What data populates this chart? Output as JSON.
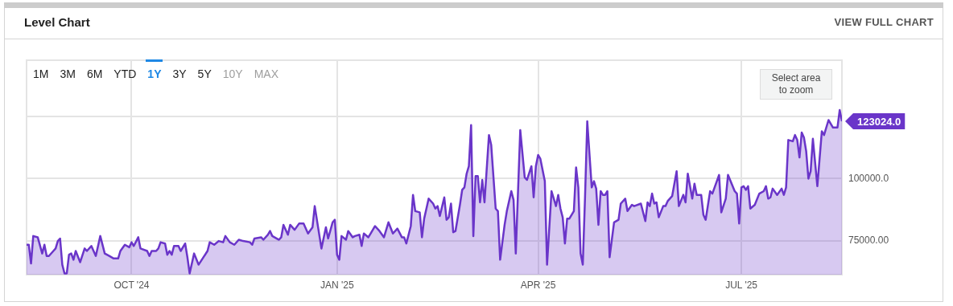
{
  "chart_data": {
    "type": "area",
    "title": "Level Chart",
    "xlim": [
      "2024-08-15",
      "2025-08-15"
    ],
    "ylim": [
      61500,
      147500
    ],
    "xticks": [
      {
        "value": "2024-10-01",
        "label": "OCT '24"
      },
      {
        "value": "2025-01-01",
        "label": "JAN '25"
      },
      {
        "value": "2025-04-01",
        "label": "APR '25"
      },
      {
        "value": "2025-07-01",
        "label": "JUL '25"
      }
    ],
    "yticks": [
      {
        "value": 75000,
        "label": "75000.00"
      },
      {
        "value": 100000,
        "label": "100000.0"
      },
      {
        "value": 125000,
        "label": null
      }
    ],
    "grid": true,
    "marker": "none",
    "line_style": "solid",
    "annotations": [
      {
        "text": "123024.0",
        "x": "2025-08-15",
        "y": 123024
      },
      "VIEW FULL CHART",
      "1M",
      "3M",
      "6M",
      "YTD",
      "1Y",
      "3Y",
      "5Y",
      "10Y",
      "MAX",
      "Select area to zoom"
    ],
    "series": [
      {
        "color": "#6a35c9",
        "x": [
          "2024-08-15",
          "2024-08-16",
          "2024-08-17",
          "2024-08-18",
          "2024-08-20",
          "2024-08-22",
          "2024-08-23",
          "2024-08-24",
          "2024-08-25",
          "2024-08-27",
          "2024-08-28",
          "2024-08-29",
          "2024-08-30",
          "2024-08-31",
          "2024-09-01",
          "2024-09-02",
          "2024-09-03",
          "2024-09-04",
          "2024-09-05",
          "2024-09-06",
          "2024-09-08",
          "2024-09-10",
          "2024-09-11",
          "2024-09-13",
          "2024-09-15",
          "2024-09-17",
          "2024-09-19",
          "2024-09-21",
          "2024-09-23",
          "2024-09-25",
          "2024-09-26",
          "2024-09-28",
          "2024-09-30",
          "2024-10-01",
          "2024-10-02",
          "2024-10-04",
          "2024-10-05",
          "2024-10-08",
          "2024-10-09",
          "2024-10-10",
          "2024-10-12",
          "2024-10-13",
          "2024-10-14",
          "2024-10-16",
          "2024-10-17",
          "2024-10-18",
          "2024-10-19",
          "2024-10-20",
          "2024-10-22",
          "2024-10-23",
          "2024-10-25",
          "2024-10-26",
          "2024-10-27",
          "2024-10-29",
          "2024-10-31",
          "2024-11-04",
          "2024-11-05",
          "2024-11-07",
          "2024-11-09",
          "2024-11-11",
          "2024-11-12",
          "2024-11-14",
          "2024-11-16",
          "2024-11-18",
          "2024-11-20",
          "2024-11-23",
          "2024-11-24",
          "2024-11-25",
          "2024-11-28",
          "2024-11-29",
          "2024-12-01",
          "2024-12-02",
          "2024-12-03",
          "2024-12-06",
          "2024-12-07",
          "2024-12-08",
          "2024-12-10",
          "2024-12-11",
          "2024-12-13",
          "2024-12-15",
          "2024-12-17",
          "2024-12-19",
          "2024-12-21",
          "2024-12-22",
          "2024-12-25",
          "2024-12-27",
          "2024-12-28",
          "2024-12-30",
          "2024-12-31",
          "2025-01-01",
          "2025-01-02",
          "2025-01-03",
          "2025-01-05",
          "2025-01-06",
          "2025-01-08",
          "2025-01-09",
          "2025-01-11",
          "2025-01-12",
          "2025-01-13",
          "2025-01-15",
          "2025-01-16",
          "2025-01-18",
          "2025-01-20",
          "2025-01-22",
          "2025-01-24",
          "2025-01-26",
          "2025-01-28",
          "2025-01-30",
          "2025-01-31",
          "2025-02-01",
          "2025-02-03",
          "2025-02-04",
          "2025-02-05",
          "2025-02-07",
          "2025-02-08",
          "2025-02-09",
          "2025-02-11",
          "2025-02-13",
          "2025-02-14",
          "2025-02-15",
          "2025-02-16",
          "2025-02-18",
          "2025-02-19",
          "2025-02-20",
          "2025-02-21",
          "2025-02-22",
          "2025-02-23",
          "2025-02-25",
          "2025-02-26",
          "2025-02-27",
          "2025-02-28",
          "2025-03-01",
          "2025-03-02",
          "2025-03-03",
          "2025-03-04",
          "2025-03-05",
          "2025-03-06",
          "2025-03-07",
          "2025-03-08",
          "2025-03-10",
          "2025-03-11",
          "2025-03-13",
          "2025-03-14",
          "2025-03-15",
          "2025-03-17",
          "2025-03-18",
          "2025-03-20",
          "2025-03-21",
          "2025-03-22",
          "2025-03-24",
          "2025-03-26",
          "2025-03-27",
          "2025-03-29",
          "2025-03-30",
          "2025-03-31",
          "2025-04-01",
          "2025-04-02",
          "2025-04-04",
          "2025-04-05",
          "2025-04-07",
          "2025-04-09",
          "2025-04-10",
          "2025-04-11",
          "2025-04-12",
          "2025-04-13",
          "2025-04-14",
          "2025-04-15",
          "2025-04-17",
          "2025-04-18",
          "2025-04-19",
          "2025-04-20",
          "2025-04-21",
          "2025-04-22",
          "2025-04-23",
          "2025-04-25",
          "2025-04-26",
          "2025-04-27",
          "2025-04-28",
          "2025-04-29",
          "2025-04-30",
          "2025-05-01",
          "2025-05-02",
          "2025-05-03",
          "2025-05-05",
          "2025-05-07",
          "2025-05-08",
          "2025-05-10",
          "2025-05-11",
          "2025-05-13",
          "2025-05-14",
          "2025-05-17",
          "2025-05-19",
          "2025-05-20",
          "2025-05-21",
          "2025-05-22",
          "2025-05-23",
          "2025-05-24",
          "2025-05-25",
          "2025-05-27",
          "2025-05-28",
          "2025-05-29",
          "2025-05-31",
          "2025-06-02",
          "2025-06-03",
          "2025-06-05",
          "2025-06-06",
          "2025-06-07",
          "2025-06-09",
          "2025-06-10",
          "2025-06-11",
          "2025-06-12",
          "2025-06-13",
          "2025-06-14",
          "2025-06-15",
          "2025-06-17",
          "2025-06-18",
          "2025-06-19",
          "2025-06-21",
          "2025-06-22",
          "2025-06-24",
          "2025-06-25",
          "2025-06-28",
          "2025-06-29",
          "2025-06-30",
          "2025-07-01",
          "2025-07-02",
          "2025-07-03",
          "2025-07-04",
          "2025-07-05",
          "2025-07-07",
          "2025-07-09",
          "2025-07-11",
          "2025-07-12",
          "2025-07-13",
          "2025-07-14",
          "2025-07-15",
          "2025-07-17",
          "2025-07-19",
          "2025-07-20",
          "2025-07-21",
          "2025-07-22",
          "2025-07-24",
          "2025-07-25",
          "2025-07-26",
          "2025-07-27",
          "2025-07-28",
          "2025-07-29",
          "2025-07-30",
          "2025-07-31",
          "2025-08-01",
          "2025-08-02",
          "2025-08-03",
          "2025-08-04",
          "2025-08-06",
          "2025-08-07",
          "2025-08-09",
          "2025-08-10",
          "2025-08-11",
          "2025-08-13",
          "2025-08-14",
          "2025-08-15"
        ],
        "values": [
          73500,
          73500,
          66000,
          77000,
          76500,
          70000,
          73500,
          69000,
          69000,
          71000,
          72000,
          75000,
          76000,
          65500,
          62000,
          62000,
          69500,
          70000,
          67500,
          71000,
          66500,
          72000,
          71000,
          73000,
          69000,
          77000,
          70000,
          69000,
          68000,
          68000,
          71000,
          73500,
          72500,
          74500,
          73000,
          76500,
          72000,
          71000,
          69000,
          71000,
          71000,
          72000,
          74500,
          74000,
          69500,
          71000,
          69500,
          73000,
          73000,
          71000,
          74000,
          68500,
          62000,
          70000,
          65500,
          71000,
          74500,
          73500,
          75000,
          74500,
          77000,
          74500,
          73500,
          75500,
          75000,
          74500,
          73500,
          76000,
          76500,
          75500,
          77500,
          79000,
          77000,
          75500,
          76500,
          81500,
          77500,
          81500,
          79500,
          82000,
          82000,
          78000,
          80500,
          89000,
          72000,
          80500,
          76000,
          82500,
          83500,
          69500,
          67500,
          77000,
          75500,
          79000,
          76500,
          77000,
          77500,
          73000,
          78000,
          76500,
          78000,
          81000,
          79000,
          76500,
          82500,
          78000,
          80000,
          76500,
          76500,
          74000,
          81000,
          93500,
          87000,
          86500,
          76500,
          84000,
          92000,
          90000,
          88000,
          89000,
          85000,
          92500,
          83500,
          84500,
          90000,
          78500,
          79000,
          89500,
          95500,
          96500,
          102000,
          105000,
          121500,
          77000,
          101000,
          101000,
          90500,
          99500,
          90500,
          117500,
          113500,
          88000,
          87000,
          67500,
          81500,
          87000,
          95000,
          91500,
          70000,
          119500,
          100500,
          99500,
          105000,
          92500,
          105000,
          109500,
          108000,
          99000,
          65500,
          95000,
          89000,
          93500,
          88000,
          84500,
          74000,
          84000,
          84000,
          87000,
          104500,
          96500,
          70000,
          65500,
          92500,
          123000,
          96500,
          99000,
          96000,
          81500,
          95000,
          93500,
          93500,
          95000,
          68500,
          82500,
          83500,
          90000,
          92000,
          87000,
          89500,
          89000,
          90000,
          83000,
          90500,
          89000,
          94000,
          90000,
          90500,
          84500,
          89000,
          89000,
          91000,
          93000,
          103000,
          89000,
          93500,
          90500,
          102000,
          92000,
          98000,
          93500,
          93500,
          93500,
          85500,
          83500,
          95000,
          94000,
          96500,
          101500,
          86500,
          92000,
          101500,
          95000,
          94000,
          82000,
          96500,
          97000,
          95500,
          97000,
          88000,
          89500,
          94000,
          95000,
          97000,
          92000,
          92500,
          96000,
          93500,
          96000,
          93500,
          96500,
          115500,
          115000,
          117500,
          115500,
          108500,
          118500,
          116500,
          111000,
          100000,
          103000,
          116000,
          106500,
          97000,
          119000,
          117500,
          123500,
          122000,
          120500,
          120500,
          127500,
          123024
        ]
      }
    ]
  }
}
